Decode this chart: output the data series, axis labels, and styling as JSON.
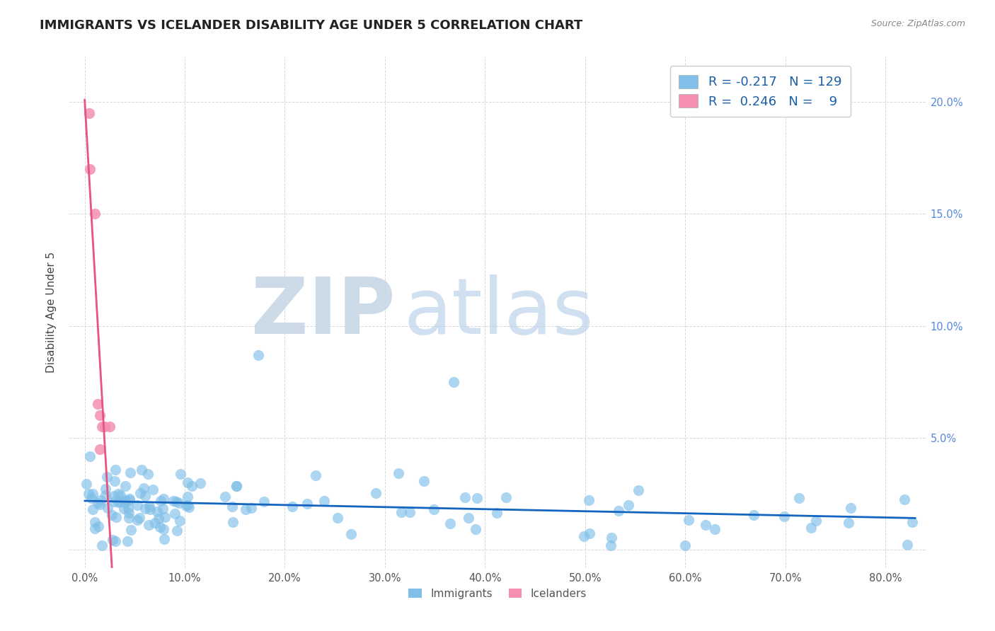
{
  "title": "IMMIGRANTS VS ICELANDER DISABILITY AGE UNDER 5 CORRELATION CHART",
  "source": "Source: ZipAtlas.com",
  "ylabel": "Disability Age Under 5",
  "xlim": [
    -1.5,
    84
  ],
  "ylim": [
    -0.8,
    22
  ],
  "xticks": [
    0,
    10,
    20,
    30,
    40,
    50,
    60,
    70,
    80
  ],
  "yticks": [
    0,
    5,
    10,
    15,
    20
  ],
  "ytick_labels_right": [
    "",
    "5.0%",
    "10.0%",
    "15.0%",
    "20.0%"
  ],
  "immigrants_color": "#7fbfe8",
  "icelanders_color": "#f48fb1",
  "immigrants_R": -0.217,
  "immigrants_N": 129,
  "icelanders_R": 0.246,
  "icelanders_N": 9,
  "trend_immigrants_color": "#1565c0",
  "trend_icelanders_color": "#e75480",
  "background_color": "#ffffff",
  "grid_color": "#d8d8d8",
  "title_color": "#222222",
  "source_color": "#888888",
  "yaxis_right_color": "#5588dd",
  "xaxis_color": "#555555",
  "legend_R_color": "#1a5fa8",
  "watermark_ZIP_color": "#c8d8e8",
  "watermark_atlas_color": "#b0cce0"
}
